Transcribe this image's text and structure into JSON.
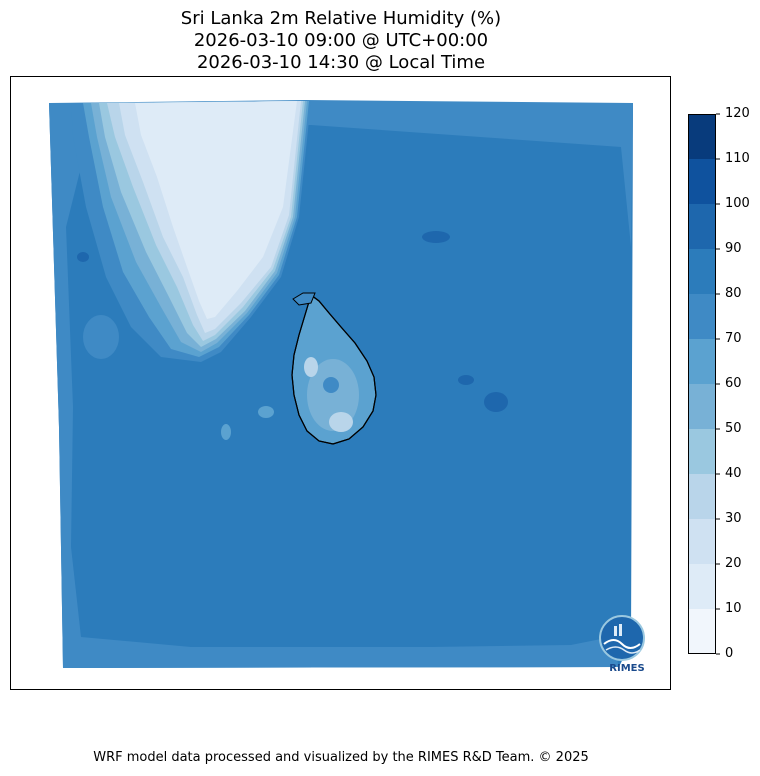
{
  "title": {
    "line1": "Sri Lanka 2m Relative Humidity (%)",
    "line2": "2026-03-10 09:00 @ UTC+00:00",
    "line3": "2026-03-10 14:30 @ Local Time"
  },
  "colorbar": {
    "ticks": [
      "0",
      "10",
      "20",
      "30",
      "40",
      "50",
      "60",
      "70",
      "80",
      "90",
      "100",
      "110",
      "120"
    ],
    "levels": [
      {
        "range": [
          0,
          10
        ],
        "color": "#f1f6fc"
      },
      {
        "range": [
          10,
          20
        ],
        "color": "#deebf7"
      },
      {
        "range": [
          20,
          30
        ],
        "color": "#cfe1f2"
      },
      {
        "range": [
          30,
          40
        ],
        "color": "#b9d5ea"
      },
      {
        "range": [
          40,
          50
        ],
        "color": "#9ac8e0"
      },
      {
        "range": [
          50,
          60
        ],
        "color": "#78b1d6"
      },
      {
        "range": [
          60,
          70
        ],
        "color": "#5ba2d0"
      },
      {
        "range": [
          70,
          80
        ],
        "color": "#3f8ac5"
      },
      {
        "range": [
          80,
          90
        ],
        "color": "#2c7cbb"
      },
      {
        "range": [
          90,
          100
        ],
        "color": "#1e67ad"
      },
      {
        "range": [
          100,
          110
        ],
        "color": "#0f529e"
      },
      {
        "range": [
          110,
          120
        ],
        "color": "#083b7c"
      }
    ]
  },
  "logo": {
    "text": "RIMES"
  },
  "footer": {
    "text": "WRF model data processed and visualized by the RIMES R&D Team. © 2025"
  }
}
